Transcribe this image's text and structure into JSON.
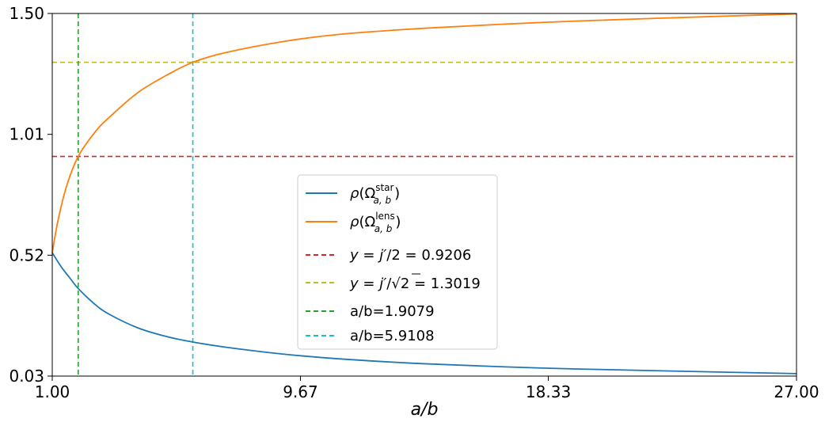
{
  "chart_data": {
    "type": "line",
    "xlabel": "a/b",
    "ylabel": "",
    "xlim": [
      1.0,
      27.0
    ],
    "ylim": [
      0.03,
      1.5
    ],
    "x_ticks": [
      1.0,
      9.67,
      18.33,
      27.0
    ],
    "x_tick_labels": [
      "1.00",
      "9.67",
      "18.33",
      "27.00"
    ],
    "y_ticks": [
      0.03,
      0.52,
      1.01,
      1.5
    ],
    "y_tick_labels": [
      "0.03",
      "0.52",
      "1.01",
      "1.50"
    ],
    "grid": false,
    "legend_position": "center",
    "colors": {
      "star": "#1f77b4",
      "lens": "#ff7f0e",
      "hline_red": "#d62728",
      "hline_olive": "#bcbd22",
      "vline_green": "#2ca02c",
      "vline_cyan": "#17becf"
    },
    "series": [
      {
        "id": "star",
        "x": [
          1.0,
          1.3,
          1.6,
          1.9079,
          2.5,
          3.0,
          4.0,
          5.0,
          5.9108,
          7.0,
          9.0,
          11.0,
          14.0,
          18.0,
          22.0,
          27.0
        ],
        "y": [
          0.53,
          0.475,
          0.43,
          0.385,
          0.32,
          0.28,
          0.225,
          0.19,
          0.168,
          0.148,
          0.12,
          0.1,
          0.08,
          0.063,
          0.052,
          0.04
        ]
      },
      {
        "id": "lens",
        "x": [
          1.0,
          1.2,
          1.5,
          1.9079,
          2.5,
          3.0,
          4.0,
          5.0,
          5.9108,
          7.0,
          9.0,
          11.0,
          14.0,
          18.0,
          22.0,
          27.0
        ],
        "y": [
          0.53,
          0.66,
          0.8,
          0.9206,
          1.02,
          1.08,
          1.18,
          1.25,
          1.3019,
          1.34,
          1.385,
          1.415,
          1.44,
          1.463,
          1.48,
          1.498
        ]
      }
    ],
    "reference_lines": [
      {
        "id": "hline-red",
        "orientation": "horizontal",
        "value": 0.9206
      },
      {
        "id": "hline-olive",
        "orientation": "horizontal",
        "value": 1.3019
      },
      {
        "id": "vline-green",
        "orientation": "vertical",
        "value": 1.9079
      },
      {
        "id": "vline-cyan",
        "orientation": "vertical",
        "value": 5.9108
      }
    ],
    "legend": {
      "entries": [
        {
          "label": "ρ(Ω_{a,b}^{star})",
          "style": "solid",
          "color_key": "star"
        },
        {
          "label": "ρ(Ω_{a,b}^{lens})",
          "style": "solid",
          "color_key": "lens"
        },
        {
          "label": "y = j′/2 = 0.9206",
          "style": "dashed",
          "color_key": "hline_red"
        },
        {
          "label": "y = j′/√2 = 1.3019",
          "style": "dashed",
          "color_key": "hline_olive"
        },
        {
          "label": "a/b=1.9079",
          "style": "dashed",
          "color_key": "vline_green"
        },
        {
          "label": "a/b=5.9108",
          "style": "dashed",
          "color_key": "vline_cyan"
        }
      ]
    }
  }
}
